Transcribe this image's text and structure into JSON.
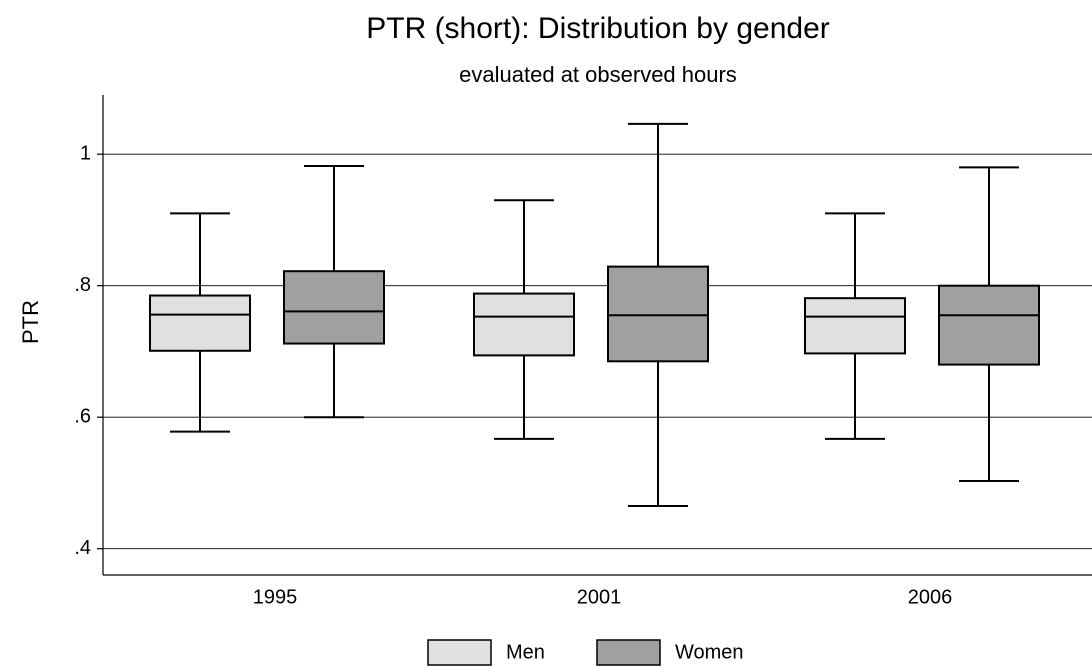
{
  "chart_data": {
    "type": "box",
    "title": "PTR (short): Distribution by gender",
    "subtitle": "evaluated at observed hours",
    "y_label": "PTR",
    "categories": [
      "1995",
      "2001",
      "2006"
    ],
    "ylim": [
      0.36,
      1.09
    ],
    "yticks": [
      {
        "value": 0.4,
        "label": ".4"
      },
      {
        "value": 0.6,
        "label": ".6"
      },
      {
        "value": 0.8,
        "label": ".8"
      },
      1
    ],
    "grid": true,
    "legend": "bottom",
    "series": [
      {
        "name": "Men",
        "color": "#e0e0e0",
        "whisker_low": [
          0.578,
          0.567,
          0.567
        ],
        "q1": [
          0.701,
          0.694,
          0.697
        ],
        "median": [
          0.756,
          0.753,
          0.753
        ],
        "q3": [
          0.785,
          0.788,
          0.781
        ],
        "whisker_high": [
          0.91,
          0.93,
          0.91
        ]
      },
      {
        "name": "Women",
        "color": "#a0a0a0",
        "whisker_low": [
          0.6,
          0.465,
          0.503
        ],
        "q1": [
          0.712,
          0.685,
          0.68
        ],
        "median": [
          0.761,
          0.755,
          0.755
        ],
        "q3": [
          0.822,
          0.829,
          0.8
        ],
        "whisker_high": [
          0.982,
          1.046,
          0.98
        ]
      }
    ]
  }
}
